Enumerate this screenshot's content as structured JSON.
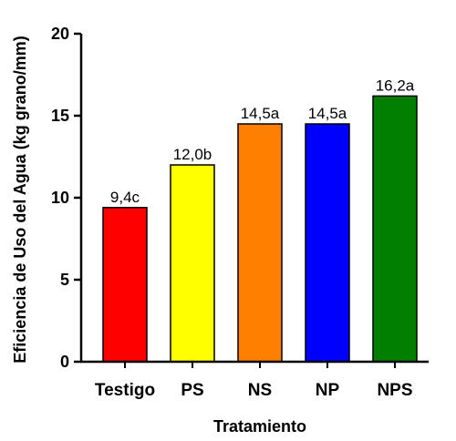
{
  "chart_data": {
    "type": "bar",
    "categories": [
      "Testigo",
      "PS",
      "NS",
      "NP",
      "NPS"
    ],
    "values": [
      9.4,
      12.0,
      14.5,
      14.5,
      16.2
    ],
    "data_labels": [
      "9,4c",
      "12,0b",
      "14,5a",
      "14,5a",
      "16,2a"
    ],
    "colors": [
      "#ff0000",
      "#ffff00",
      "#ff7f00",
      "#0000ff",
      "#007f00"
    ],
    "xlabel": "Tratamiento",
    "ylabel": "Eficiencia de Uso del Agua (kg grano/mm)",
    "ylim": [
      0,
      20
    ],
    "yticks": [
      0,
      5,
      10,
      15,
      20
    ],
    "grid": false,
    "legend": "none"
  }
}
